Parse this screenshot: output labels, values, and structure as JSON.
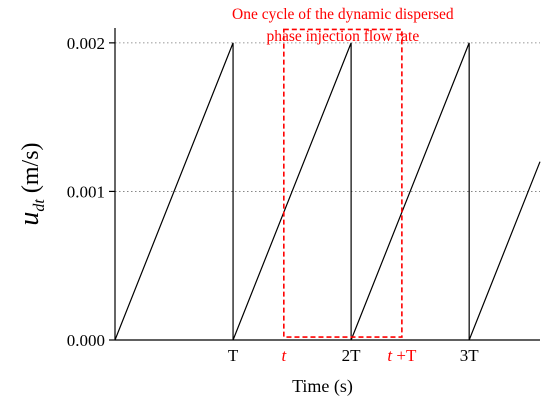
{
  "chart_data": {
    "type": "line",
    "title": "",
    "xlabel": "Time (s)",
    "ylabel": {
      "main": "u",
      "sub": "dt",
      "unit": "(m/s)"
    },
    "ylim": [
      0,
      0.0021
    ],
    "xlim": [
      0,
      3.6
    ],
    "yticks": [
      {
        "value": 0.0,
        "label": "0.000"
      },
      {
        "value": 0.001,
        "label": "0.001"
      },
      {
        "value": 0.002,
        "label": "0.002"
      }
    ],
    "grid": "horizontal-dotted",
    "xticks": [
      {
        "value": 1,
        "label": "T"
      },
      {
        "value": 2,
        "label": "2T"
      },
      {
        "value": 3,
        "label": "3T"
      }
    ],
    "red_xticks": [
      {
        "value": 1.43,
        "italic": "t",
        "rest": ""
      },
      {
        "value": 2.43,
        "italic": "t",
        "rest": " +T"
      }
    ],
    "series": [
      {
        "color": "#000000",
        "x": [
          0,
          1,
          1,
          2,
          2,
          3,
          3,
          3.6
        ],
        "y": [
          0,
          0.002,
          0,
          0.002,
          0,
          0.002,
          0,
          0.0012
        ]
      }
    ],
    "annotation": {
      "lines": [
        "One cycle of the dynamic dispersed",
        "phase injection flow rate"
      ],
      "color": "#ff0000",
      "box_x": [
        1.43,
        2.43
      ],
      "box_y": [
        2e-05,
        0.00209
      ]
    }
  }
}
